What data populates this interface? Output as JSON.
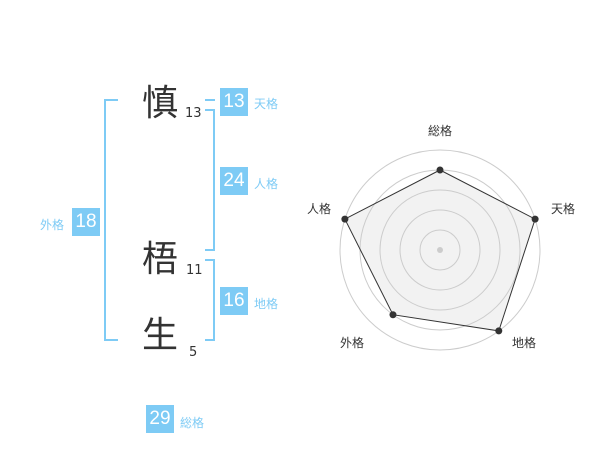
{
  "name": {
    "characters": [
      {
        "char": "慎",
        "strokes": "13"
      },
      {
        "char": "梧",
        "strokes": "11"
      },
      {
        "char": "生",
        "strokes": "5"
      }
    ]
  },
  "kaku": {
    "tenkaku": {
      "label": "天格",
      "value": "13"
    },
    "jinkaku": {
      "label": "人格",
      "value": "24"
    },
    "chikaku": {
      "label": "地格",
      "value": "16"
    },
    "gaikaku": {
      "label": "外格",
      "value": "18"
    },
    "soukaku": {
      "label": "総格",
      "value": "29"
    }
  },
  "colors": {
    "accent": "#7ecbf5",
    "text": "#333333",
    "fill": "#f2f2f2",
    "ring": "#cccccc"
  },
  "chart_data": {
    "type": "radar",
    "categories": [
      "総格",
      "天格",
      "地格",
      "外格",
      "人格"
    ],
    "values": [
      4,
      5,
      5,
      4,
      5
    ],
    "range": [
      0,
      5
    ],
    "rings": 5
  }
}
